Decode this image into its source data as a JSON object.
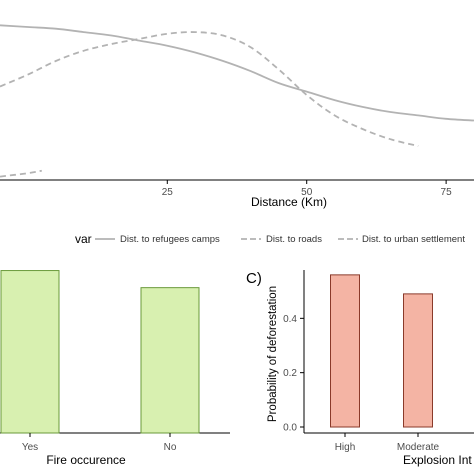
{
  "chart_data": [
    {
      "type": "line",
      "xlabel": "Distance (Km)",
      "x_ticks": [
        25,
        50,
        75
      ],
      "x_range": [
        -5,
        80
      ],
      "y_range": [
        0,
        1
      ],
      "grid": false,
      "legend": {
        "title": "var",
        "placement": "bottom",
        "entries": [
          "Dist. to refugees camps",
          "Dist. to roads",
          "Dist. to urban settlement"
        ]
      },
      "series": [
        {
          "name": "Dist. to refugees camps",
          "style": "solid",
          "x": [
            -5,
            0,
            5,
            10,
            15,
            20,
            25,
            30,
            35,
            40,
            45,
            50,
            55,
            60,
            65,
            70,
            75,
            80
          ],
          "y": [
            0.91,
            0.9,
            0.89,
            0.87,
            0.85,
            0.82,
            0.79,
            0.75,
            0.7,
            0.64,
            0.57,
            0.52,
            0.47,
            0.43,
            0.4,
            0.38,
            0.36,
            0.35
          ]
        },
        {
          "name": "Dist. to roads",
          "style": "dashed",
          "x": [
            -5,
            0,
            5,
            10,
            15,
            20,
            25,
            30,
            35,
            40,
            45,
            50,
            55,
            60,
            65,
            70
          ],
          "y": [
            0.55,
            0.62,
            0.7,
            0.76,
            0.8,
            0.83,
            0.86,
            0.87,
            0.85,
            0.78,
            0.65,
            0.5,
            0.38,
            0.3,
            0.24,
            0.2
          ]
        },
        {
          "name": "Dist. to urban settlement",
          "style": "dashed",
          "x": [
            -5,
            0,
            2.5
          ],
          "y": [
            0.02,
            0.04,
            0.055
          ]
        }
      ]
    },
    {
      "type": "bar",
      "xlabel": "Fire occurence",
      "categories": [
        "Yes",
        "No"
      ],
      "values": [
        0.57,
        0.51
      ],
      "ylim": [
        0,
        0.6
      ],
      "color": "#d8f0b0",
      "stroke": "#6a9a3a"
    },
    {
      "type": "bar",
      "panel_label": "C)",
      "ylabel": "Probability of deforestation",
      "xlabel": "Explosion Int",
      "categories": [
        "High",
        "Moderate"
      ],
      "values": [
        0.56,
        0.49
      ],
      "y_ticks": [
        "0.0",
        "0.2",
        "0.4"
      ],
      "y_tick_values": [
        0.0,
        0.2,
        0.4
      ],
      "ylim": [
        0,
        0.6
      ],
      "color": "#f4b4a4",
      "stroke": "#8a3a2a"
    }
  ]
}
